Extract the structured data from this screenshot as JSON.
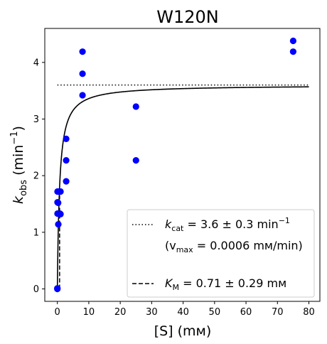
{
  "chart_data": {
    "type": "scatter",
    "title": "W120N",
    "xlabel": "[S] (mᴍ)",
    "ylabel_main": "k",
    "ylabel_sub": "obs",
    "ylabel_unit": " (min",
    "ylabel_sup": "−1",
    "ylabel_close": ")",
    "xlim": [
      -4,
      83.5
    ],
    "ylim": [
      -0.22,
      4.6
    ],
    "xticks": [
      0,
      10,
      20,
      30,
      40,
      50,
      60,
      70,
      80
    ],
    "yticks": [
      0,
      1,
      2,
      3,
      4
    ],
    "points": [
      {
        "x": 0,
        "y": 0.0
      },
      {
        "x": 0,
        "y": 0.01
      },
      {
        "x": 0.05,
        "y": 1.72
      },
      {
        "x": 0.05,
        "y": 1.53
      },
      {
        "x": 0.05,
        "y": 1.33
      },
      {
        "x": 0.25,
        "y": 1.52
      },
      {
        "x": 0.3,
        "y": 1.14
      },
      {
        "x": 0.6,
        "y": 1.72
      },
      {
        "x": 0.8,
        "y": 1.33
      },
      {
        "x": 1.0,
        "y": 1.72
      },
      {
        "x": 1.0,
        "y": 1.32
      },
      {
        "x": 2.8,
        "y": 2.65
      },
      {
        "x": 2.8,
        "y": 2.27
      },
      {
        "x": 2.8,
        "y": 1.9
      },
      {
        "x": 8,
        "y": 4.19
      },
      {
        "x": 8,
        "y": 3.8
      },
      {
        "x": 8,
        "y": 3.42
      },
      {
        "x": 25,
        "y": 3.22
      },
      {
        "x": 25,
        "y": 2.27
      },
      {
        "x": 75,
        "y": 4.38
      },
      {
        "x": 75,
        "y": 4.19
      }
    ],
    "fit": {
      "kcat": 3.6,
      "KM": 0.71
    },
    "point_color": "#0000ff",
    "legend": {
      "placement": "bottom-right",
      "kcat_label_main": "k",
      "kcat_label_sub": "cat",
      "kcat_label_rest": " = 3.6 ± 0.3 min",
      "kcat_label_sup": "−1",
      "vmax_label_open": "(v",
      "vmax_label_sub": "max",
      "vmax_label_rest": " = 0.0006 mᴍ/min)",
      "km_label_main": "K",
      "km_label_sub": "M",
      "km_label_rest": " = 0.71 ± 0.29 mᴍ"
    }
  }
}
